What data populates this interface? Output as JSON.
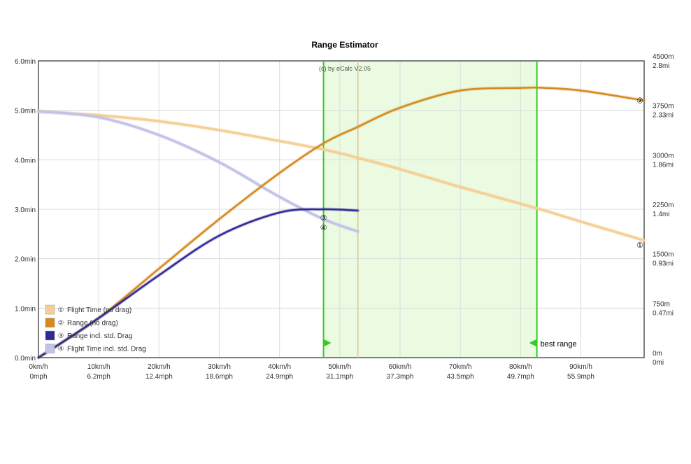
{
  "chart_data": {
    "type": "line",
    "title": "Range Estimator",
    "credit": "(c) by eCalc  V2.05",
    "x_ticks": [
      {
        "kmh": 0,
        "top": "0km/h",
        "bottom": "0mph"
      },
      {
        "kmh": 10,
        "top": "10km/h",
        "bottom": "6.2mph"
      },
      {
        "kmh": 20,
        "top": "20km/h",
        "bottom": "12.4mph"
      },
      {
        "kmh": 30,
        "top": "30km/h",
        "bottom": "18.6mph"
      },
      {
        "kmh": 40,
        "top": "40km/h",
        "bottom": "24.9mph"
      },
      {
        "kmh": 50,
        "top": "50km/h",
        "bottom": "31.1mph"
      },
      {
        "kmh": 60,
        "top": "60km/h",
        "bottom": "37.3mph"
      },
      {
        "kmh": 70,
        "top": "70km/h",
        "bottom": "43.5mph"
      },
      {
        "kmh": 80,
        "top": "80km/h",
        "bottom": "49.7mph"
      },
      {
        "kmh": 90,
        "top": "90km/h",
        "bottom": "55.9mph"
      }
    ],
    "xlim": [
      0,
      100.5
    ],
    "y_left_ticks": [
      {
        "v": 0,
        "label": "0.0min"
      },
      {
        "v": 1,
        "label": "1.0min"
      },
      {
        "v": 2,
        "label": "2.0min"
      },
      {
        "v": 3,
        "label": "3.0min"
      },
      {
        "v": 4,
        "label": "4.0min"
      },
      {
        "v": 5,
        "label": "5.0min"
      },
      {
        "v": 6,
        "label": "6.0min"
      }
    ],
    "ylim_left": [
      0,
      6
    ],
    "y_right_ticks": [
      {
        "v": 0,
        "top": "0m",
        "bottom": "0mi"
      },
      {
        "v": 750,
        "top": "750m",
        "bottom": "0.47mi"
      },
      {
        "v": 1500,
        "top": "1500m",
        "bottom": "0.93mi"
      },
      {
        "v": 2250,
        "top": "2250m",
        "bottom": "1.4mi"
      },
      {
        "v": 3000,
        "top": "3000m",
        "bottom": "1.86mi"
      },
      {
        "v": 3750,
        "top": "3750m",
        "bottom": "2.33mi"
      },
      {
        "v": 4500,
        "top": "4500m",
        "bottom": "2.8mi"
      }
    ],
    "ylim_right": [
      0,
      4500
    ],
    "grid": true,
    "optimal_band": {
      "from": 47.3,
      "to": 82.7
    },
    "marker_line_kmh": 53.0,
    "best_range_label": "best range",
    "series": [
      {
        "name": "Flight Time (no drag)",
        "marker": "①",
        "axis": "left",
        "color": "#f5cf95",
        "width": 3.5,
        "x": [
          0,
          10,
          20,
          30,
          40,
          47.3,
          53,
          60,
          70,
          82.7,
          90,
          100.5
        ],
        "y": [
          4.98,
          4.9,
          4.78,
          4.6,
          4.38,
          4.21,
          4.04,
          3.81,
          3.45,
          3.02,
          2.75,
          2.37
        ]
      },
      {
        "name": "Range (no drag)",
        "marker": "②",
        "axis": "right",
        "color": "#d48a1f",
        "width": 2.5,
        "x": [
          0,
          10,
          20,
          30,
          40,
          47.3,
          53,
          60,
          70,
          80,
          84,
          90,
          100.5
        ],
        "y": [
          0,
          600,
          1350,
          2100,
          2800,
          3250,
          3500,
          3790,
          4050,
          4090,
          4090,
          4050,
          3900
        ]
      },
      {
        "name": "Range incl. std. Drag",
        "marker": "③",
        "axis": "right",
        "color": "#2e2a93",
        "width": 2.5,
        "x": [
          0,
          10,
          20,
          30,
          40,
          47.3,
          53
        ],
        "y": [
          0,
          600,
          1250,
          1850,
          2200,
          2250,
          2230
        ]
      },
      {
        "name": "Flight Time incl. std. Drag",
        "marker": "④",
        "axis": "left",
        "color": "#c3c3e8",
        "width": 3.5,
        "x": [
          0,
          10,
          20,
          30,
          40,
          47.3,
          53
        ],
        "y": [
          4.98,
          4.86,
          4.5,
          3.95,
          3.25,
          2.8,
          2.55
        ]
      }
    ],
    "curve_end_labels": [
      {
        "marker": "①",
        "x": 99.8,
        "y_left": 2.28
      },
      {
        "marker": "②",
        "x": 99.8,
        "y_left": 5.2
      },
      {
        "marker": "③",
        "x": 47.3,
        "y_left": 2.83
      },
      {
        "marker": "④",
        "x": 47.3,
        "y_left": 2.63
      }
    ],
    "legend_position": "bottom-left"
  }
}
